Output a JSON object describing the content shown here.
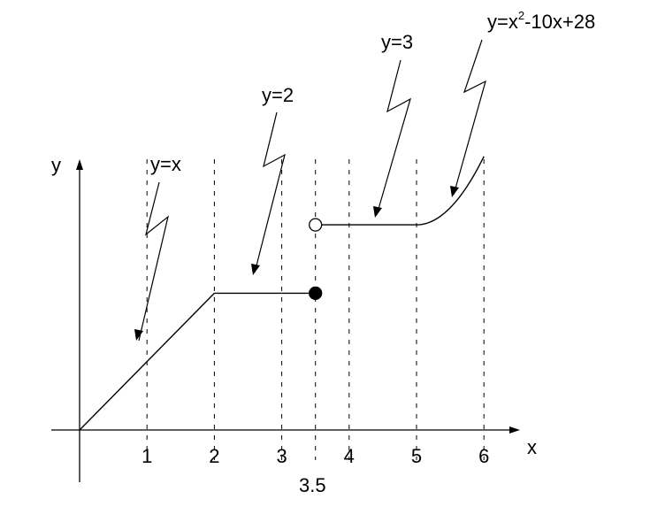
{
  "chart_data": {
    "type": "line",
    "title": "",
    "xlabel": "x",
    "ylabel": "y",
    "x_ticks": [
      "1",
      "2",
      "3",
      "4",
      "5",
      "6"
    ],
    "special_tick": "3.5",
    "dashed_verticals_at": [
      1,
      2,
      3,
      3.5,
      4,
      5,
      6
    ],
    "series": [
      {
        "name": "y=x",
        "from_x": 0,
        "to_x": 2,
        "points": [
          [
            0,
            0
          ],
          [
            2,
            2
          ]
        ]
      },
      {
        "name": "y=2",
        "from_x": 2,
        "to_x": 3.5,
        "points": [
          [
            2,
            2
          ],
          [
            3.5,
            2
          ]
        ]
      },
      {
        "name": "y=3",
        "from_x": 3.5,
        "to_x": 5,
        "points": [
          [
            3.5,
            3
          ],
          [
            5,
            3
          ]
        ]
      },
      {
        "name": "y=x^2-10x+28",
        "from_x": 5,
        "to_x": 6,
        "formula": "x^2-10x+28"
      }
    ],
    "endpoints": [
      {
        "x": 3.5,
        "y": 2,
        "style": "filled"
      },
      {
        "x": 3.5,
        "y": 3,
        "style": "open"
      }
    ],
    "annotations": {
      "yx": "y=x",
      "y2": "y=2",
      "y3": "y=3",
      "quad_base": "y=x",
      "quad_exp": "2",
      "quad_rest": "-10x+28"
    }
  }
}
